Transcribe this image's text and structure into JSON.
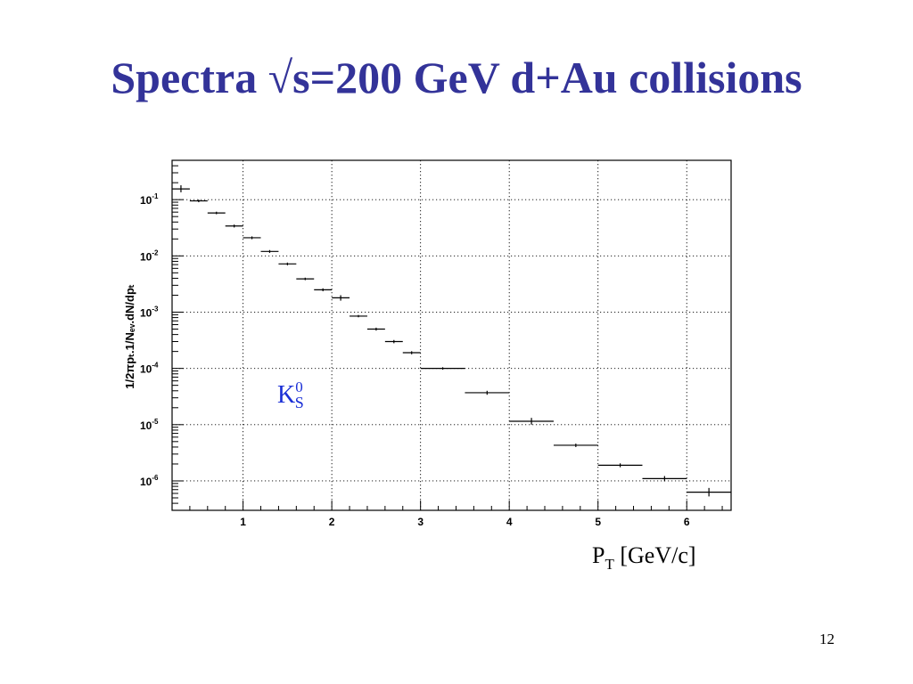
{
  "slide": {
    "title": "Spectra √s=200 GeV d+Au collisions",
    "page_number": "12"
  },
  "chart_data": {
    "type": "scatter",
    "title": "",
    "particle_label": {
      "main": "K",
      "sup": "0",
      "sub": "S"
    },
    "xlabel": {
      "main": "P",
      "sub": "T",
      "rest": " [GeV/c]"
    },
    "ylabel": "1/2πpₜ.1/Nₑᵥ.dN/dpₜ",
    "xlim": [
      0.2,
      6.5
    ],
    "ylim": [
      3e-07,
      0.5
    ],
    "yscale": "log",
    "grid": true,
    "xticks": [
      1,
      2,
      3,
      4,
      5,
      6
    ],
    "xtick_labels": [
      "1",
      "2",
      "3",
      "4",
      "5",
      "6"
    ],
    "yticks": [
      1e-06,
      1e-05,
      0.0001,
      0.001,
      0.01,
      0.1
    ],
    "ytick_labels": [
      {
        "base": "10",
        "exp": "-6"
      },
      {
        "base": "10",
        "exp": "-5"
      },
      {
        "base": "10",
        "exp": "-4"
      },
      {
        "base": "10",
        "exp": "-3"
      },
      {
        "base": "10",
        "exp": "-2"
      },
      {
        "base": "10",
        "exp": "-1"
      }
    ],
    "series": [
      {
        "points": [
          {
            "xlo": 0.2,
            "xhi": 0.4,
            "y": 0.155,
            "ylo": 0.135,
            "yhi": 0.18
          },
          {
            "xlo": 0.4,
            "xhi": 0.6,
            "y": 0.095,
            "ylo": 0.09,
            "yhi": 0.1
          },
          {
            "xlo": 0.6,
            "xhi": 0.8,
            "y": 0.058,
            "ylo": 0.055,
            "yhi": 0.061
          },
          {
            "xlo": 0.8,
            "xhi": 1.0,
            "y": 0.034,
            "ylo": 0.032,
            "yhi": 0.036
          },
          {
            "xlo": 1.0,
            "xhi": 1.2,
            "y": 0.021,
            "ylo": 0.0198,
            "yhi": 0.0222
          },
          {
            "xlo": 1.2,
            "xhi": 1.4,
            "y": 0.012,
            "ylo": 0.0113,
            "yhi": 0.0127
          },
          {
            "xlo": 1.4,
            "xhi": 1.6,
            "y": 0.0072,
            "ylo": 0.0068,
            "yhi": 0.0076
          },
          {
            "xlo": 1.6,
            "xhi": 1.8,
            "y": 0.0039,
            "ylo": 0.0037,
            "yhi": 0.0041
          },
          {
            "xlo": 1.8,
            "xhi": 2.0,
            "y": 0.0025,
            "ylo": 0.00235,
            "yhi": 0.00265
          },
          {
            "xlo": 2.0,
            "xhi": 2.2,
            "y": 0.0018,
            "ylo": 0.0016,
            "yhi": 0.002
          },
          {
            "xlo": 2.2,
            "xhi": 2.4,
            "y": 0.00085,
            "ylo": 0.00081,
            "yhi": 0.00089
          },
          {
            "xlo": 2.4,
            "xhi": 2.6,
            "y": 0.0005,
            "ylo": 0.00047,
            "yhi": 0.00053
          },
          {
            "xlo": 2.6,
            "xhi": 2.8,
            "y": 0.0003,
            "ylo": 0.00028,
            "yhi": 0.00032
          },
          {
            "xlo": 2.8,
            "xhi": 3.0,
            "y": 0.00019,
            "ylo": 0.000178,
            "yhi": 0.000202
          },
          {
            "xlo": 3.0,
            "xhi": 3.5,
            "y": 0.0001,
            "ylo": 9.5e-05,
            "yhi": 0.000105
          },
          {
            "xlo": 3.5,
            "xhi": 4.0,
            "y": 3.7e-05,
            "ylo": 3.4e-05,
            "yhi": 4e-05
          },
          {
            "xlo": 4.0,
            "xhi": 4.5,
            "y": 1.15e-05,
            "ylo": 1e-05,
            "yhi": 1.32e-05
          },
          {
            "xlo": 4.5,
            "xhi": 5.0,
            "y": 4.3e-06,
            "ylo": 4e-06,
            "yhi": 4.6e-06
          },
          {
            "xlo": 5.0,
            "xhi": 5.5,
            "y": 1.9e-06,
            "ylo": 1.75e-06,
            "yhi": 2.05e-06
          },
          {
            "xlo": 5.5,
            "xhi": 6.0,
            "y": 1.1e-06,
            "ylo": 9.8e-07,
            "yhi": 1.22e-06
          },
          {
            "xlo": 6.0,
            "xhi": 6.5,
            "y": 6.3e-07,
            "ylo": 5.3e-07,
            "yhi": 7.5e-07
          }
        ]
      }
    ]
  }
}
